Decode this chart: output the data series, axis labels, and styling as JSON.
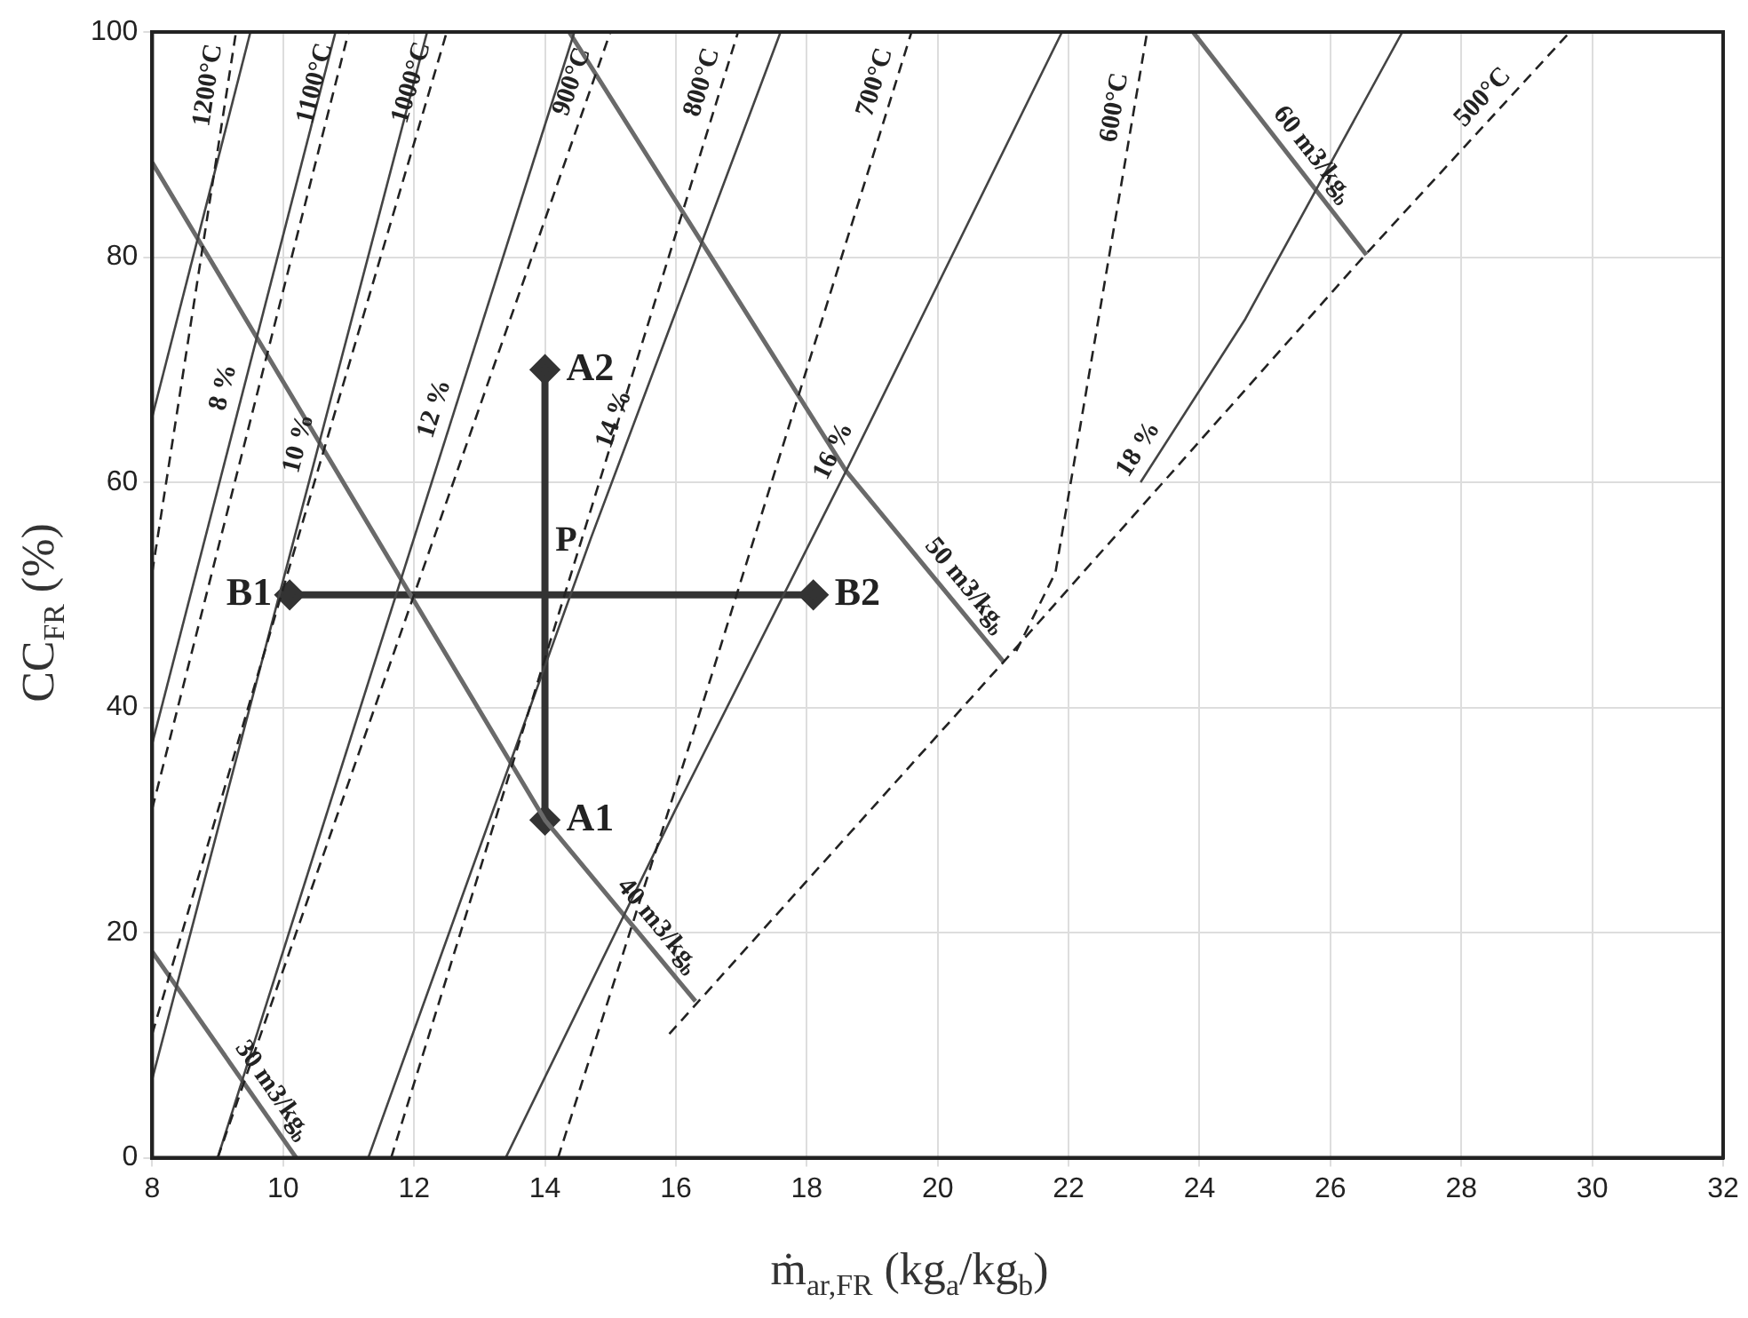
{
  "chart_data": {
    "type": "line",
    "xlabel": "ṁ$_{ar,FR}$ (kg$_{a}$/kg$_{b}$)",
    "ylabel": "CC$_{FR}$ (%)",
    "xlim": [
      8,
      32
    ],
    "xticks": [
      8,
      10,
      12,
      14,
      16,
      18,
      20,
      22,
      24,
      26,
      28,
      30,
      32
    ],
    "ylim": [
      0,
      100
    ],
    "yticks": [
      0,
      20,
      40,
      60,
      80,
      100
    ],
    "grid": true,
    "legend": false,
    "marker": "none",
    "series": [
      {
        "color": "#222222",
        "line_style": "dashed",
        "x": [
          8,
          9.28
        ],
        "values": [
          52,
          100
        ]
      },
      {
        "color": "#222222",
        "line_style": "dashed",
        "x": [
          8,
          11.0
        ],
        "values": [
          31,
          100
        ]
      },
      {
        "color": "#222222",
        "line_style": "dashed",
        "x": [
          8,
          12.5
        ],
        "values": [
          11,
          100
        ]
      },
      {
        "color": "#222222",
        "line_style": "dashed",
        "x": [
          9.0,
          15.0
        ],
        "values": [
          0,
          100
        ]
      },
      {
        "color": "#222222",
        "line_style": "dashed",
        "x": [
          11.65,
          16.95
        ],
        "values": [
          0,
          100
        ]
      },
      {
        "color": "#222222",
        "line_style": "dashed",
        "x": [
          14.2,
          16.5,
          19.6
        ],
        "values": [
          0,
          42,
          100
        ]
      },
      {
        "color": "#222222",
        "line_style": "dashed",
        "x": [
          21.2,
          21.8,
          23.2
        ],
        "values": [
          45,
          52,
          100
        ]
      },
      {
        "color": "#222222",
        "line_style": "dashed",
        "x": [
          15.9,
          21.0,
          26.5,
          29.66
        ],
        "values": [
          11,
          44,
          80,
          100
        ]
      },
      {
        "color": "#444444",
        "line_style": "solid",
        "x": [
          8,
          9.5
        ],
        "values": [
          65.8,
          100
        ]
      },
      {
        "color": "#444444",
        "line_style": "solid",
        "x": [
          8,
          10.8
        ],
        "values": [
          36.8,
          100
        ]
      },
      {
        "color": "#444444",
        "line_style": "solid",
        "x": [
          8,
          12.2
        ],
        "values": [
          7,
          100
        ]
      },
      {
        "color": "#444444",
        "line_style": "solid",
        "x": [
          9.0,
          14.45
        ],
        "values": [
          0,
          100
        ]
      },
      {
        "color": "#444444",
        "line_style": "solid",
        "x": [
          11.3,
          14.7,
          17.6
        ],
        "values": [
          0,
          55,
          100
        ]
      },
      {
        "color": "#444444",
        "line_style": "solid",
        "x": [
          13.4,
          16.0,
          18.6,
          21.9
        ],
        "values": [
          0,
          31,
          61,
          100
        ]
      },
      {
        "color": "#444444",
        "line_style": "solid",
        "x": [
          23.1,
          24.7,
          27.1
        ],
        "values": [
          60,
          74.5,
          100
        ]
      },
      {
        "color": "#6a6a6a",
        "line_style": "solid",
        "x": [
          8,
          10.2
        ],
        "values": [
          18.3,
          0
        ]
      },
      {
        "color": "#6a6a6a",
        "line_style": "solid",
        "x": [
          8,
          14,
          16.3
        ],
        "values": [
          88.4,
          30,
          13.9
        ]
      },
      {
        "color": "#6a6a6a",
        "line_style": "solid",
        "x": [
          14.37,
          18.6,
          21.0
        ],
        "values": [
          100,
          61,
          44.1
        ]
      },
      {
        "color": "#6a6a6a",
        "line_style": "solid",
        "x": [
          23.9,
          26.55
        ],
        "values": [
          100,
          80.2
        ]
      },
      {
        "color": "#333333",
        "line_style": "solid",
        "marker": "diamond",
        "x": [
          14,
          14
        ],
        "values": [
          30,
          70
        ],
        "value_labels": [
          "A1",
          "A2"
        ]
      },
      {
        "color": "#333333",
        "line_style": "solid",
        "marker": "diamond",
        "x": [
          10.1,
          18.1
        ],
        "values": [
          50,
          50
        ],
        "value_labels": [
          "B1",
          "B2"
        ]
      }
    ],
    "annotations": [
      {
        "text": "1200°C",
        "x": 9.15,
        "y": 95
      },
      {
        "text": "1100°C",
        "x": 10.78,
        "y": 95
      },
      {
        "text": "1000°C",
        "x": 12.25,
        "y": 95
      },
      {
        "text": "900°C",
        "x": 14.7,
        "y": 95
      },
      {
        "text": "800°C",
        "x": 16.69,
        "y": 95
      },
      {
        "text": "700°C",
        "x": 19.33,
        "y": 95
      },
      {
        "text": "600°C",
        "x": 23.0,
        "y": 93
      },
      {
        "text": "500°C",
        "x": 28.55,
        "y": 93
      },
      {
        "text": "8 %",
        "x": 9.38,
        "y": 68
      },
      {
        "text": "10 %",
        "x": 10.53,
        "y": 63
      },
      {
        "text": "12 %",
        "x": 12.6,
        "y": 66
      },
      {
        "text": "14 %",
        "x": 15.34,
        "y": 65
      },
      {
        "text": "16 %",
        "x": 18.68,
        "y": 62
      },
      {
        "text": "18 %",
        "x": 23.32,
        "y": 62
      },
      {
        "text": "30 m3/kg$_{b}$",
        "x": 9.6,
        "y": 5.0
      },
      {
        "text": "40 m3/kg$_{b}$",
        "x": 15.5,
        "y": 19.5
      },
      {
        "text": "50 m3/kg$_{b}$",
        "x": 20.2,
        "y": 49.73
      },
      {
        "text": "60 m3/kg$_{b}$",
        "x": 25.5,
        "y": 88.05
      },
      {
        "text": "P",
        "x": 14,
        "y": 50
      }
    ]
  }
}
